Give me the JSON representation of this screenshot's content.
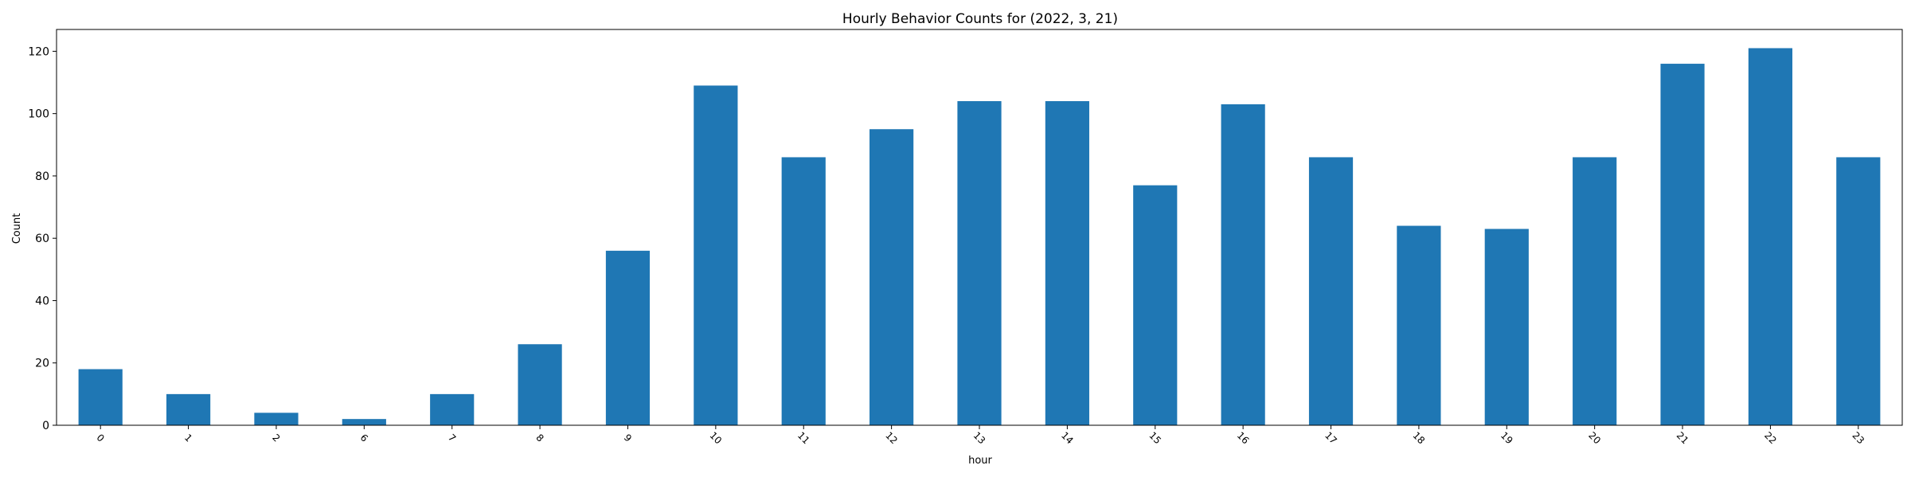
{
  "chart_data": {
    "type": "bar",
    "title": "Hourly Behavior Counts for (2022, 3, 21)",
    "xlabel": "hour",
    "ylabel": "Count",
    "categories": [
      "0",
      "1",
      "2",
      "6",
      "7",
      "8",
      "9",
      "10",
      "11",
      "12",
      "13",
      "14",
      "15",
      "16",
      "17",
      "18",
      "19",
      "20",
      "21",
      "22",
      "23"
    ],
    "values": [
      18,
      10,
      4,
      2,
      10,
      26,
      56,
      109,
      86,
      95,
      104,
      104,
      77,
      103,
      86,
      64,
      63,
      86,
      116,
      121,
      86
    ],
    "ylim": [
      0,
      127
    ],
    "yticks": [
      "0",
      "20",
      "40",
      "60",
      "80",
      "100",
      "120"
    ],
    "grid": false,
    "legend": "none",
    "bar_color": "#1f77b4"
  }
}
